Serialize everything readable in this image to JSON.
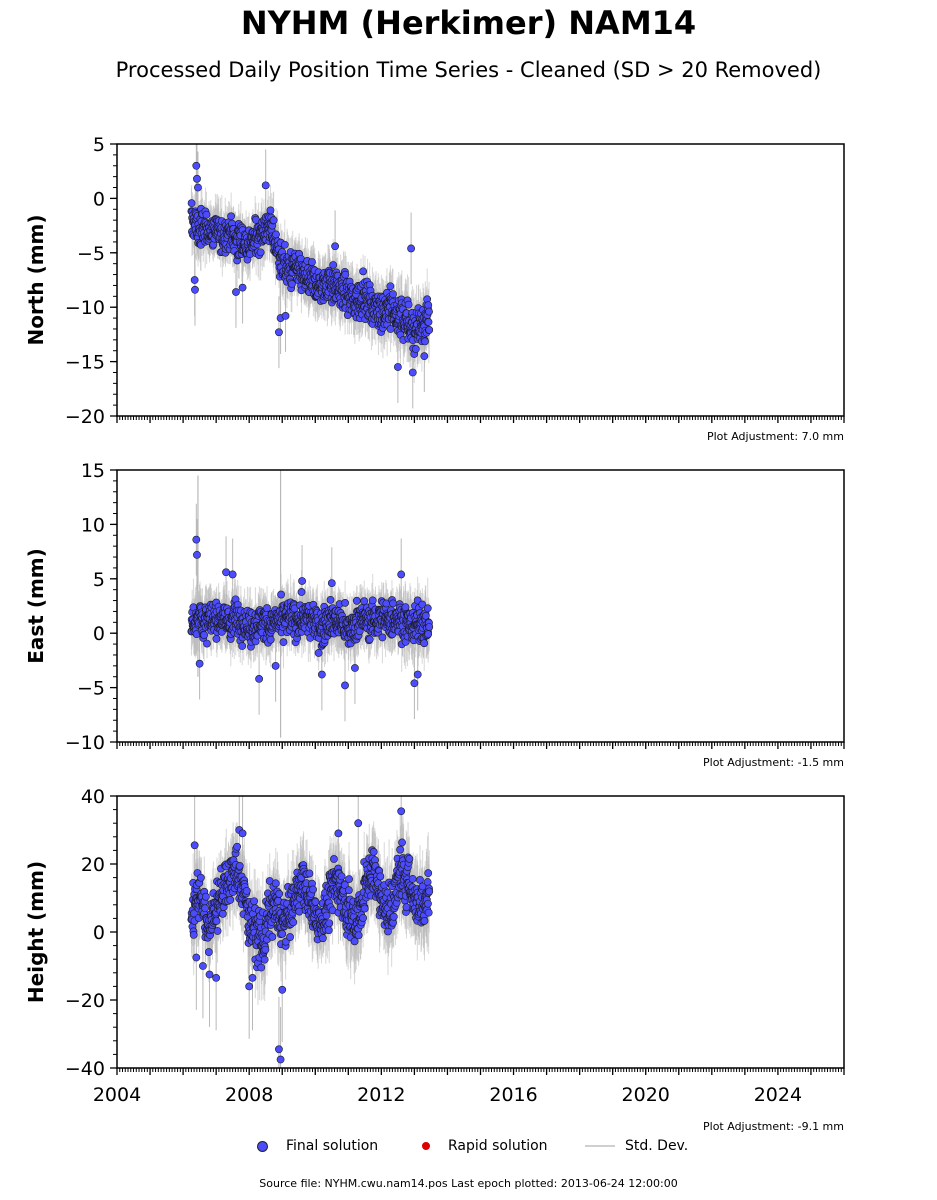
{
  "title": "NYHM (Herkimer) NAM14",
  "subtitle": "Processed Daily Position Time Series - Cleaned (SD > 20 Removed)",
  "footer": "Source file: NYHM.cwu.nam14.pos  Last epoch plotted: 2013-06-24 12:00:00",
  "legend": {
    "final": "Final solution",
    "rapid": "Rapid solution",
    "std": "Std. Dev."
  },
  "colors": {
    "final": "#4c4cff",
    "rapid": "#dd0000",
    "std": "#b8b8b8",
    "marker_edge": "#1a1a1a"
  },
  "chart_data": [
    {
      "type": "scatter",
      "ylabel": "North (mm)",
      "adjustment": "Plot Adjustment: 7.0 mm",
      "xlim": [
        2004,
        2026
      ],
      "ylim": [
        -20,
        5
      ],
      "yticks": [
        5,
        0,
        -5,
        -10,
        -15,
        -20
      ],
      "ytick_labels": [
        "5",
        "0",
        "−5",
        "−10",
        "−15",
        "−20"
      ],
      "xticks": [],
      "xtick_labels": [],
      "series": [
        {
          "style": "final",
          "x": [
            2006.3,
            2006.4,
            2006.5,
            2006.6,
            2006.7,
            2006.8,
            2006.9,
            2007.0,
            2007.2,
            2007.4,
            2007.6,
            2007.8,
            2008.0,
            2008.2,
            2008.4,
            2008.6,
            2008.8,
            2009.0,
            2009.2,
            2009.4,
            2009.6,
            2009.8,
            2010.0,
            2010.2,
            2010.4,
            2010.6,
            2010.8,
            2011.0,
            2011.2,
            2011.4,
            2011.6,
            2011.8,
            2012.0,
            2012.2,
            2012.4,
            2012.6,
            2012.8,
            2013.0,
            2013.2,
            2013.4
          ],
          "y": [
            -2.0,
            -2.5,
            -3.0,
            -2.8,
            -2.5,
            -3.2,
            -3.0,
            -2.8,
            -3.5,
            -3.0,
            -3.8,
            -4.0,
            -4.5,
            -3.5,
            -3.0,
            -2.5,
            -4.0,
            -6.0,
            -6.5,
            -6.5,
            -7.0,
            -7.5,
            -8.0,
            -8.2,
            -7.5,
            -8.0,
            -8.5,
            -9.0,
            -9.5,
            -9.0,
            -9.5,
            -10.0,
            -10.5,
            -10.0,
            -10.5,
            -11.0,
            -11.5,
            -12.0,
            -11.5,
            -11.0
          ],
          "err": [
            1.5,
            1.8,
            1.5,
            1.5,
            1.4,
            1.5,
            1.4,
            1.5,
            1.5,
            1.4,
            1.6,
            1.5,
            1.5,
            1.4,
            1.6,
            1.5,
            1.8,
            1.5,
            1.6,
            1.5,
            1.5,
            1.6,
            1.7,
            1.5,
            1.6,
            1.5,
            1.6,
            1.5,
            1.7,
            1.6,
            1.5,
            1.6,
            1.7,
            1.8,
            1.7,
            1.8,
            1.9,
            1.8,
            1.7,
            1.8
          ]
        }
      ],
      "outliers": {
        "x": [
          2006.35,
          2006.36,
          2006.4,
          2006.42,
          2006.45,
          2007.6,
          2007.8,
          2008.5,
          2008.9,
          2008.95,
          2009.1,
          2010.6,
          2012.5,
          2012.9,
          2012.95,
          2013.3
        ],
        "y": [
          -7.5,
          -8.4,
          3.0,
          1.8,
          1.0,
          -8.6,
          -8.2,
          1.2,
          -12.3,
          -11.0,
          -10.8,
          -4.4,
          -15.5,
          -4.6,
          -16.0,
          -14.5
        ]
      }
    },
    {
      "type": "scatter",
      "ylabel": "East (mm)",
      "adjustment": "Plot Adjustment: -1.5 mm",
      "xlim": [
        2004,
        2026
      ],
      "ylim": [
        -10,
        15
      ],
      "yticks": [
        15,
        10,
        5,
        0,
        -5,
        -10
      ],
      "ytick_labels": [
        "15",
        "10",
        "5",
        "0",
        "−5",
        "−10"
      ],
      "xticks": [],
      "xtick_labels": [],
      "series": [
        {
          "style": "final",
          "x": [
            2006.3,
            2006.4,
            2006.5,
            2006.6,
            2006.7,
            2006.8,
            2006.9,
            2007.0,
            2007.2,
            2007.4,
            2007.6,
            2007.8,
            2008.0,
            2008.2,
            2008.4,
            2008.6,
            2008.8,
            2009.0,
            2009.2,
            2009.4,
            2009.6,
            2009.8,
            2010.0,
            2010.2,
            2010.4,
            2010.6,
            2010.8,
            2011.0,
            2011.2,
            2011.4,
            2011.6,
            2011.8,
            2012.0,
            2012.2,
            2012.4,
            2012.6,
            2012.8,
            2013.0,
            2013.2,
            2013.4
          ],
          "y": [
            1.0,
            1.5,
            1.8,
            1.2,
            0.8,
            1.5,
            1.0,
            1.2,
            1.5,
            1.0,
            1.3,
            1.2,
            0.5,
            0.8,
            1.2,
            0.5,
            1.0,
            1.2,
            1.5,
            1.0,
            1.5,
            1.2,
            1.0,
            0.5,
            1.5,
            1.2,
            1.0,
            0.0,
            1.0,
            1.5,
            1.0,
            1.2,
            1.5,
            1.0,
            1.5,
            1.2,
            1.0,
            0.8,
            1.0,
            0.8
          ],
          "err": [
            1.5,
            2.0,
            1.6,
            1.5,
            1.5,
            1.6,
            1.5,
            1.4,
            1.5,
            1.5,
            1.6,
            1.5,
            1.6,
            1.5,
            1.5,
            1.6,
            1.5,
            1.5,
            1.6,
            1.5,
            1.5,
            1.6,
            1.5,
            1.6,
            1.5,
            1.5,
            1.6,
            1.5,
            1.6,
            1.5,
            1.5,
            1.6,
            1.5,
            1.7,
            1.6,
            1.6,
            1.7,
            1.6,
            1.6,
            1.7
          ]
        }
      ],
      "outliers": {
        "x": [
          2006.4,
          2006.42,
          2006.5,
          2007.3,
          2007.5,
          2008.3,
          2008.8,
          2009.6,
          2010.2,
          2010.5,
          2010.9,
          2011.2,
          2012.6,
          2013.0,
          2013.1
        ],
        "y": [
          8.6,
          7.2,
          -2.8,
          5.6,
          5.4,
          -4.2,
          -3.0,
          4.8,
          -3.8,
          4.6,
          -4.8,
          -3.2,
          5.4,
          -4.6,
          -3.8
        ]
      },
      "spikes": {
        "x": [
          2006.45,
          2008.95
        ],
        "low": [
          -4.0,
          -9.6
        ],
        "high": [
          14.5,
          15.0
        ]
      }
    },
    {
      "type": "scatter",
      "ylabel": "Height (mm)",
      "adjustment": "Plot Adjustment: -9.1 mm",
      "xlim": [
        2004,
        2026
      ],
      "ylim": [
        -40,
        40
      ],
      "yticks": [
        40,
        20,
        0,
        -20,
        -40
      ],
      "ytick_labels": [
        "40",
        "20",
        "0",
        "−20",
        "−40"
      ],
      "xticks": [
        2004,
        2008,
        2012,
        2016,
        2020,
        2024
      ],
      "xtick_labels": [
        "2004",
        "2008",
        "2012",
        "2016",
        "2020",
        "2024"
      ],
      "series": [
        {
          "style": "final",
          "x": [
            2006.3,
            2006.4,
            2006.5,
            2006.6,
            2006.7,
            2006.8,
            2006.9,
            2007.0,
            2007.2,
            2007.4,
            2007.6,
            2007.8,
            2008.0,
            2008.2,
            2008.4,
            2008.6,
            2008.8,
            2009.0,
            2009.2,
            2009.4,
            2009.6,
            2009.8,
            2010.0,
            2010.2,
            2010.4,
            2010.6,
            2010.8,
            2011.0,
            2011.2,
            2011.4,
            2011.6,
            2011.8,
            2012.0,
            2012.2,
            2012.4,
            2012.6,
            2012.8,
            2013.0,
            2013.2,
            2013.4
          ],
          "y": [
            5.0,
            10.0,
            12.0,
            8.0,
            3.0,
            2.0,
            5.0,
            8.0,
            12.0,
            15.0,
            18.0,
            12.0,
            5.0,
            0.0,
            -3.0,
            5.0,
            8.0,
            2.0,
            5.0,
            10.0,
            15.0,
            10.0,
            5.0,
            3.0,
            8.0,
            15.0,
            12.0,
            6.0,
            3.0,
            8.0,
            15.0,
            18.0,
            10.0,
            5.0,
            10.0,
            18.0,
            15.0,
            10.0,
            8.0,
            12.0
          ],
          "err": [
            7,
            8,
            7,
            7,
            6,
            7,
            7,
            7,
            6,
            7,
            7,
            8,
            7,
            7,
            8,
            7,
            7,
            7,
            6,
            7,
            7,
            7,
            7,
            6,
            7,
            7,
            7,
            7,
            8,
            7,
            7,
            7,
            7,
            8,
            7,
            8,
            8,
            7,
            7,
            8
          ]
        }
      ],
      "outliers": {
        "x": [
          2006.35,
          2006.4,
          2006.6,
          2006.8,
          2007.0,
          2007.7,
          2007.8,
          2008.0,
          2008.1,
          2008.9,
          2008.95,
          2009.0,
          2010.7,
          2011.3,
          2012.6
        ],
        "y": [
          25.5,
          -7.5,
          -10.0,
          -12.5,
          -13.5,
          30.0,
          29.0,
          -16.0,
          -13.5,
          -34.5,
          -37.5,
          -17.0,
          29.0,
          32.0,
          35.5
        ]
      }
    }
  ]
}
